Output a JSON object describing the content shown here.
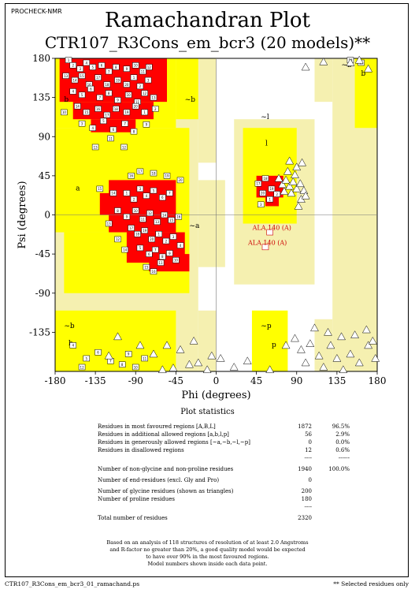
{
  "program": "PROCHECK-NMR",
  "title": "Ramachandran Plot",
  "subtitle": "CTR107_R3Cons_em_bcr3 (20 models)**",
  "footer_left": "CTR107_R3Cons_em_bcr3_01_ramachand.ps",
  "footer_right": "** Selected residues only",
  "colors": {
    "most": "#ff0000",
    "additional": "#ffff00",
    "generous": "#f5f0b0",
    "disallowed": "#ffffff"
  },
  "chart_data": {
    "type": "scatter",
    "xlabel": "Phi (degrees)",
    "ylabel": "Psi (degrees)",
    "xlim": [
      -180,
      180
    ],
    "ylim": [
      -180,
      180
    ],
    "xticks": [
      -180,
      -135,
      -90,
      -45,
      0,
      45,
      90,
      135,
      180
    ],
    "yticks": [
      180,
      135,
      90,
      45,
      0,
      -45,
      -90,
      -135
    ],
    "region_labels": [
      {
        "text": "b",
        "phi": -170,
        "psi": 130
      },
      {
        "text": "~b",
        "phi": -35,
        "psi": 130
      },
      {
        "text": "~l",
        "phi": 50,
        "psi": 110
      },
      {
        "text": "l",
        "phi": 55,
        "psi": 80
      },
      {
        "text": "a",
        "phi": -157,
        "psi": 28
      },
      {
        "text": "~a",
        "phi": -30,
        "psi": -15
      },
      {
        "text": "~b",
        "phi": -170,
        "psi": -130
      },
      {
        "text": "b",
        "phi": -165,
        "psi": -150
      },
      {
        "text": "~p",
        "phi": 50,
        "psi": -130
      },
      {
        "text": "p",
        "phi": 62,
        "psi": -152
      },
      {
        "text": "~b",
        "phi": 140,
        "psi": 170
      },
      {
        "text": "b",
        "phi": 162,
        "psi": 160
      }
    ],
    "highlighted": [
      {
        "label": "ALA 140 (A)",
        "phi": 60,
        "psi": -20
      },
      {
        "label": "ALA 140 (A)",
        "phi": 55,
        "psi": -37
      }
    ],
    "series": [
      {
        "name": "non-glycine",
        "marker": "square",
        "points": [
          [
            -165,
            178
          ],
          [
            -160,
            172
          ],
          [
            -152,
            168
          ],
          [
            -145,
            175
          ],
          [
            -138,
            170
          ],
          [
            -128,
            172
          ],
          [
            -120,
            165
          ],
          [
            -112,
            170
          ],
          [
            -100,
            168
          ],
          [
            -90,
            172
          ],
          [
            -82,
            165
          ],
          [
            -75,
            170
          ],
          [
            -168,
            160
          ],
          [
            -158,
            155
          ],
          [
            -150,
            160
          ],
          [
            -142,
            150
          ],
          [
            -132,
            158
          ],
          [
            -122,
            150
          ],
          [
            -110,
            155
          ],
          [
            -100,
            150
          ],
          [
            -92,
            158
          ],
          [
            -85,
            148
          ],
          [
            -76,
            155
          ],
          [
            -160,
            142
          ],
          [
            -150,
            138
          ],
          [
            -140,
            145
          ],
          [
            -130,
            135
          ],
          [
            -120,
            140
          ],
          [
            -110,
            132
          ],
          [
            -98,
            138
          ],
          [
            -88,
            130
          ],
          [
            -80,
            140
          ],
          [
            -70,
            135
          ],
          [
            -155,
            125
          ],
          [
            -145,
            118
          ],
          [
            -132,
            122
          ],
          [
            -122,
            115
          ],
          [
            -112,
            122
          ],
          [
            -100,
            118
          ],
          [
            -90,
            125
          ],
          [
            -80,
            118
          ],
          [
            -68,
            122
          ],
          [
            -150,
            105
          ],
          [
            -138,
            100
          ],
          [
            -126,
            108
          ],
          [
            -115,
            98
          ],
          [
            -102,
            105
          ],
          [
            -92,
            96
          ],
          [
            -78,
            104
          ],
          [
            -170,
            118
          ],
          [
            -118,
            88
          ],
          [
            -103,
            78
          ],
          [
            -135,
            78
          ],
          [
            -115,
            25
          ],
          [
            -130,
            30
          ],
          [
            -95,
            45
          ],
          [
            -85,
            50
          ],
          [
            -70,
            48
          ],
          [
            -55,
            45
          ],
          [
            -40,
            40
          ],
          [
            -100,
            25
          ],
          [
            -92,
            18
          ],
          [
            -85,
            30
          ],
          [
            -78,
            22
          ],
          [
            -70,
            28
          ],
          [
            -60,
            20
          ],
          [
            -52,
            25
          ],
          [
            -110,
            5
          ],
          [
            -100,
            -2
          ],
          [
            -90,
            5
          ],
          [
            -82,
            -5
          ],
          [
            -74,
            2
          ],
          [
            -66,
            -8
          ],
          [
            -58,
            0
          ],
          [
            -50,
            -6
          ],
          [
            -42,
            -2
          ],
          [
            -95,
            -15
          ],
          [
            -88,
            -22
          ],
          [
            -80,
            -18
          ],
          [
            -72,
            -28
          ],
          [
            -64,
            -22
          ],
          [
            -56,
            -30
          ],
          [
            -48,
            -25
          ],
          [
            -40,
            -35
          ],
          [
            -85,
            -38
          ],
          [
            -75,
            -45
          ],
          [
            -68,
            -40
          ],
          [
            -60,
            -48
          ],
          [
            -52,
            -44
          ],
          [
            -45,
            -52
          ],
          [
            -62,
            -55
          ],
          [
            -110,
            -28
          ],
          [
            -120,
            -10
          ],
          [
            -102,
            -40
          ],
          [
            -78,
            -60
          ],
          [
            -70,
            -65
          ],
          [
            47,
            36
          ],
          [
            55,
            42
          ],
          [
            62,
            30
          ],
          [
            52,
            25
          ],
          [
            60,
            18
          ],
          [
            68,
            24
          ],
          [
            50,
            12
          ],
          [
            -160,
            -150
          ],
          [
            -145,
            -165
          ],
          [
            -132,
            -158
          ],
          [
            -118,
            -168
          ],
          [
            -105,
            -172
          ],
          [
            -98,
            -160
          ],
          [
            -90,
            -175
          ],
          [
            -80,
            -165
          ],
          [
            -150,
            -175
          ],
          [
            162,
            175
          ],
          [
            150,
            178
          ]
        ]
      },
      {
        "name": "glycine (triangles)",
        "marker": "triangle",
        "points": [
          [
            74,
            35
          ],
          [
            78,
            40
          ],
          [
            82,
            33
          ],
          [
            86,
            38
          ],
          [
            90,
            30
          ],
          [
            94,
            36
          ],
          [
            98,
            28
          ],
          [
            84,
            25
          ],
          [
            76,
            27
          ],
          [
            70,
            42
          ],
          [
            88,
            46
          ],
          [
            80,
            50
          ],
          [
            95,
            18
          ],
          [
            100,
            22
          ],
          [
            92,
            10
          ],
          [
            96,
            60
          ],
          [
            90,
            55
          ],
          [
            82,
            62
          ],
          [
            -25,
            -145
          ],
          [
            -40,
            -155
          ],
          [
            -55,
            -150
          ],
          [
            -70,
            -160
          ],
          [
            -20,
            -170
          ],
          [
            -10,
            -178
          ],
          [
            -30,
            -172
          ],
          [
            -48,
            -176
          ],
          [
            -5,
            -162
          ],
          [
            -60,
            -178
          ],
          [
            -110,
            -140
          ],
          [
            -85,
            -150
          ],
          [
            -120,
            -162
          ],
          [
            78,
            -150
          ],
          [
            88,
            -142
          ],
          [
            95,
            -155
          ],
          [
            100,
            -170
          ],
          [
            105,
            -148
          ],
          [
            115,
            -162
          ],
          [
            120,
            -175
          ],
          [
            128,
            -150
          ],
          [
            135,
            -165
          ],
          [
            142,
            -178
          ],
          [
            150,
            -160
          ],
          [
            160,
            -170
          ],
          [
            170,
            -150
          ],
          [
            178,
            -165
          ],
          [
            110,
            -130
          ],
          [
            125,
            -135
          ],
          [
            140,
            -140
          ],
          [
            155,
            -138
          ],
          [
            168,
            -132
          ],
          [
            175,
            -145
          ],
          [
            160,
            178
          ],
          [
            170,
            168
          ],
          [
            150,
            175
          ],
          [
            120,
            176
          ],
          [
            100,
            170
          ],
          [
            60,
            -178
          ],
          [
            35,
            -168
          ],
          [
            20,
            -175
          ],
          [
            5,
            -165
          ]
        ]
      }
    ]
  },
  "stats": {
    "title": "Plot statistics",
    "rows": [
      {
        "label": "Residues in most favoured regions  [A,B,L]",
        "count": "1872",
        "pct": "96.5%"
      },
      {
        "label": "Residues in additional allowed regions  [a,b,l,p]",
        "count": "56",
        "pct": "2.9%"
      },
      {
        "label": "Residues in generously allowed regions  [~a,~b,~l,~p]",
        "count": "0",
        "pct": "0.0%"
      },
      {
        "label": "Residues in disallowed regions",
        "count": "12",
        "pct": "0.6%"
      },
      {
        "label": "",
        "count": "----",
        "pct": "------"
      },
      {
        "label": "Number of non-glycine and non-proline residues",
        "count": "1940",
        "pct": "100.0%"
      },
      {
        "label": "Number of end-residues (excl. Gly and Pro)",
        "count": "0",
        "pct": ""
      },
      {
        "label": "Number of glycine residues (shown as triangles)",
        "count": "200",
        "pct": ""
      },
      {
        "label": "Number of proline residues",
        "count": "180",
        "pct": ""
      },
      {
        "label": "",
        "count": "----",
        "pct": ""
      },
      {
        "label": "Total number of residues",
        "count": "2320",
        "pct": ""
      }
    ],
    "note": [
      "Based on an analysis of 118 structures of resolution of at least 2.0 Angstroms",
      "and R-factor no greater than 20%, a good quality model would be expected",
      "to have over 90% in the most favoured regions.",
      "Model numbers shown inside each data point."
    ]
  }
}
